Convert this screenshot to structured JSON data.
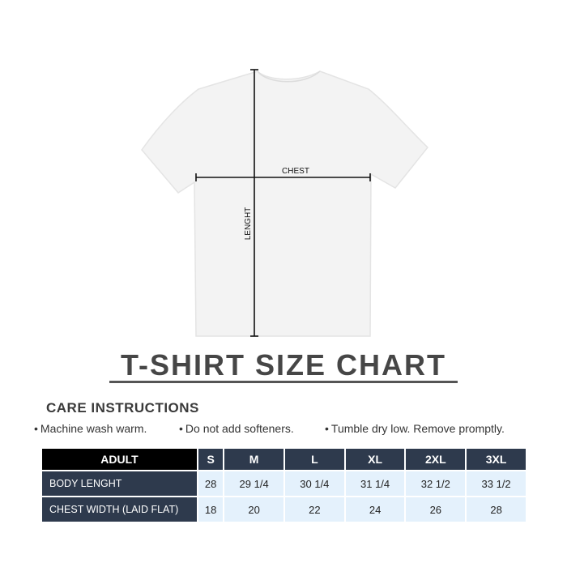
{
  "diagram": {
    "chest_label": "CHEST",
    "length_label": "LENGHT"
  },
  "title": "T-SHIRT SIZE CHART",
  "care": {
    "heading": "CARE INSTRUCTIONS",
    "items": [
      "Machine wash warm.",
      "Do not add softeners.",
      "Tumble dry low. Remove promptly."
    ]
  },
  "table": {
    "corner": "ADULT",
    "sizes": [
      "S",
      "M",
      "L",
      "XL",
      "2XL",
      "3XL"
    ],
    "rows": [
      {
        "label": "BODY LENGHT",
        "values": [
          "28",
          "29 1/4",
          "30 1/4",
          "31 1/4",
          "32 1/2",
          "33 1/2"
        ]
      },
      {
        "label": "CHEST WIDTH (LAID FLAT)",
        "values": [
          "18",
          "20",
          "22",
          "24",
          "26",
          "28"
        ]
      }
    ]
  },
  "colors": {
    "header": "#2e3a4d",
    "cell": "#e4f1fc",
    "corner": "#000000"
  }
}
